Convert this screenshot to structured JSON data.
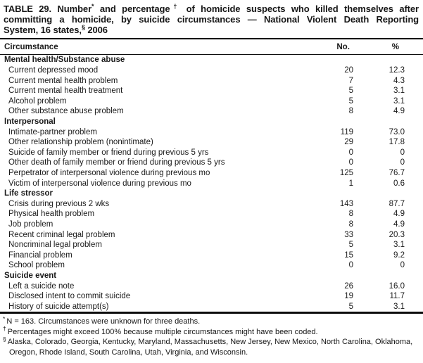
{
  "title": {
    "line1": {
      "t1": "TABLE 29. Number",
      "sup1": "*",
      "t2": " and percentage",
      "sup2": "†",
      "t3": " of homicide suspects who killed themselves after"
    },
    "line2": "committing a homicide, by suicide circumstances — National Violent Death Reporting",
    "line3": {
      "t1": "System, 16 states,",
      "sup1": "§",
      "t2": " 2006"
    }
  },
  "columns": {
    "circumstance": "Circumstance",
    "number": "No.",
    "percent": "%"
  },
  "sections": [
    {
      "header": "Mental health/Substance abuse",
      "rows": [
        {
          "label": "Current depressed mood",
          "no": "20",
          "pct": "12.3"
        },
        {
          "label": "Current mental health problem",
          "no": "7",
          "pct": "4.3"
        },
        {
          "label": "Current mental health treatment",
          "no": "5",
          "pct": "3.1"
        },
        {
          "label": "Alcohol problem",
          "no": "5",
          "pct": "3.1"
        },
        {
          "label": "Other substance abuse problem",
          "no": "8",
          "pct": "4.9"
        }
      ]
    },
    {
      "header": "Interpersonal",
      "rows": [
        {
          "label": "Intimate-partner problem",
          "no": "119",
          "pct": "73.0"
        },
        {
          "label": "Other relationship problem (nonintimate)",
          "no": "29",
          "pct": "17.8"
        },
        {
          "label": "Suicide of family member or friend during previous 5 yrs",
          "no": "0",
          "pct": "0"
        },
        {
          "label": "Other death of family member or friend during previous 5 yrs",
          "no": "0",
          "pct": "0"
        },
        {
          "label": "Perpetrator of interpersonal violence during previous mo",
          "no": "125",
          "pct": "76.7"
        },
        {
          "label": "Victim of interpersonal violence during previous mo",
          "no": "1",
          "pct": "0.6"
        }
      ]
    },
    {
      "header": "Life stressor",
      "rows": [
        {
          "label": "Crisis during previous 2 wks",
          "no": "143",
          "pct": "87.7"
        },
        {
          "label": "Physical health problem",
          "no": "8",
          "pct": "4.9"
        },
        {
          "label": "Job problem",
          "no": "8",
          "pct": "4.9"
        },
        {
          "label": "Recent criminal legal problem",
          "no": "33",
          "pct": "20.3"
        },
        {
          "label": "Noncriminal legal problem",
          "no": "5",
          "pct": "3.1"
        },
        {
          "label": "Financial problem",
          "no": "15",
          "pct": "9.2"
        },
        {
          "label": "School problem",
          "no": "0",
          "pct": "0"
        }
      ]
    },
    {
      "header": "Suicide event",
      "rows": [
        {
          "label": "Left a suicide note",
          "no": "26",
          "pct": "16.0"
        },
        {
          "label": "Disclosed intent to commit suicide",
          "no": "19",
          "pct": "11.7"
        },
        {
          "label": "History of suicide attempt(s)",
          "no": "5",
          "pct": "3.1"
        }
      ]
    }
  ],
  "footnotes": [
    {
      "symbol": "*",
      "text": "N = 163.  Circumstances were unknown for three deaths."
    },
    {
      "symbol": "†",
      "text": "Percentages might exceed 100% because multiple circumstances might have been coded."
    },
    {
      "symbol": "§",
      "text": "Alaska, Colorado, Georgia, Kentucky, Maryland, Massachusetts, New Jersey, New Mexico, North Carolina, Oklahoma, Oregon, Rhode Island, South Carolina, Utah, Virginia, and Wisconsin."
    }
  ]
}
